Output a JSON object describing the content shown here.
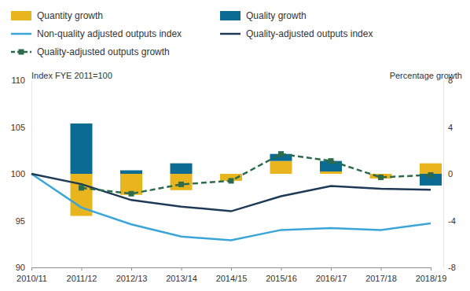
{
  "chart_data": {
    "type": "combo",
    "y_label": "Index FYE 2011=100",
    "y2_label": "Percentage growth",
    "categories": [
      "2010/11",
      "2011/12",
      "2012/13",
      "2013/14",
      "2014/15",
      "2015/16",
      "2016/17",
      "2017/18",
      "2018/19"
    ],
    "stacked": true,
    "grid": false,
    "legend": "top",
    "ylim": [
      90,
      110
    ],
    "yticks": [
      90,
      95,
      100,
      105,
      110
    ],
    "y2lim": [
      -8,
      8
    ],
    "y2ticks": [
      -8,
      -4,
      0,
      4,
      8
    ],
    "series": [
      {
        "name": "Quantity growth",
        "type": "bar",
        "axis": "y2",
        "color": "#e8b51f",
        "values": [
          null,
          -3.6,
          -1.8,
          -1.4,
          -0.6,
          1.1,
          0.2,
          -0.4,
          0.9
        ]
      },
      {
        "name": "Quality growth",
        "type": "bar",
        "axis": "y2",
        "color": "#0b6b92",
        "values": [
          null,
          4.3,
          0.3,
          0.9,
          0.0,
          0.6,
          0.9,
          0.0,
          -1.0
        ]
      },
      {
        "name": "Non-quality adjusted outputs index",
        "type": "line",
        "color": "#3aa6d8",
        "line_style": "solid",
        "values": [
          100,
          96.4,
          94.6,
          93.3,
          92.9,
          94.0,
          94.2,
          94.0,
          94.7
        ]
      },
      {
        "name": "Quality-adjusted outputs index",
        "type": "line",
        "color": "#1e3a56",
        "line_style": "solid",
        "values": [
          100,
          98.9,
          97.2,
          96.5,
          96.0,
          97.6,
          98.7,
          98.4,
          98.3
        ]
      },
      {
        "name": "Quality-adjusted outputs growth",
        "type": "line",
        "axis": "y2",
        "color": "#2c6b4c",
        "line_style": "dashed",
        "marker": "square",
        "values": [
          null,
          -1.2,
          -1.7,
          -0.9,
          -0.6,
          1.7,
          1.1,
          -0.3,
          -0.1
        ]
      }
    ]
  }
}
